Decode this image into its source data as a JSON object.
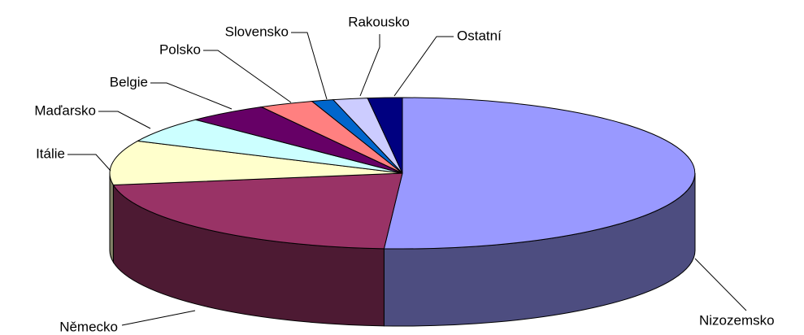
{
  "chart_data": {
    "type": "pie3d",
    "categories": [
      "Nizozemsko",
      "Německo",
      "Itálie",
      "Maďarsko",
      "Belgie",
      "Polsko",
      "Slovensko",
      "Rakousko",
      "Ostatní"
    ],
    "values": [
      51,
      21.5,
      9.5,
      5.5,
      4.5,
      3,
      1.2,
      1.9,
      1.9
    ],
    "colors": [
      "#9999ff",
      "#993366",
      "#ffffcc",
      "#ccffff",
      "#660066",
      "#ff8080",
      "#0066cc",
      "#ccccff",
      "#000080"
    ]
  }
}
